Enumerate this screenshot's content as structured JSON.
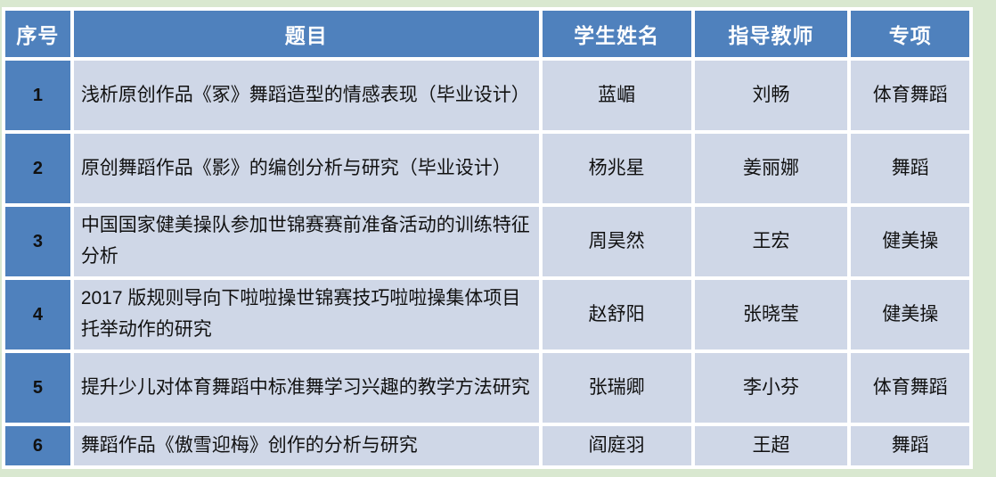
{
  "page": {
    "background_color": "#d9e8d0",
    "grid_color": "#ffffff"
  },
  "table": {
    "header_bg": "#4f81bd",
    "header_text_color": "#ffffff",
    "row_bg": "#cfd7e7",
    "index_column_bg": "#4f81bd",
    "columns": [
      "序号",
      "题目",
      "学生姓名",
      "指导教师",
      "专项"
    ],
    "rows": [
      {
        "no": "1",
        "title": "浅析原创作品《冢》舞蹈造型的情感表现（毕业设计）",
        "student": "蓝嵋",
        "teacher": "刘畅",
        "specialty": "体育舞蹈"
      },
      {
        "no": "2",
        "title": "原创舞蹈作品《影》的编创分析与研究（毕业设计）",
        "student": "杨兆星",
        "teacher": "姜丽娜",
        "specialty": "舞蹈"
      },
      {
        "no": "3",
        "title": "中国国家健美操队参加世锦赛赛前准备活动的训练特征分析",
        "student": "周昊然",
        "teacher": "王宏",
        "specialty": "健美操"
      },
      {
        "no": "4",
        "title": "2017 版规则导向下啦啦操世锦赛技巧啦啦操集体项目托举动作的研究",
        "student": "赵舒阳",
        "teacher": "张晓莹",
        "specialty": "健美操"
      },
      {
        "no": "5",
        "title": "提升少儿对体育舞蹈中标准舞学习兴趣的教学方法研究",
        "student": "张瑞卿",
        "teacher": "李小芬",
        "specialty": "体育舞蹈"
      },
      {
        "no": "6",
        "title": "舞蹈作品《傲雪迎梅》创作的分析与研究",
        "student": "阎庭羽",
        "teacher": "王超",
        "specialty": "舞蹈"
      }
    ]
  }
}
